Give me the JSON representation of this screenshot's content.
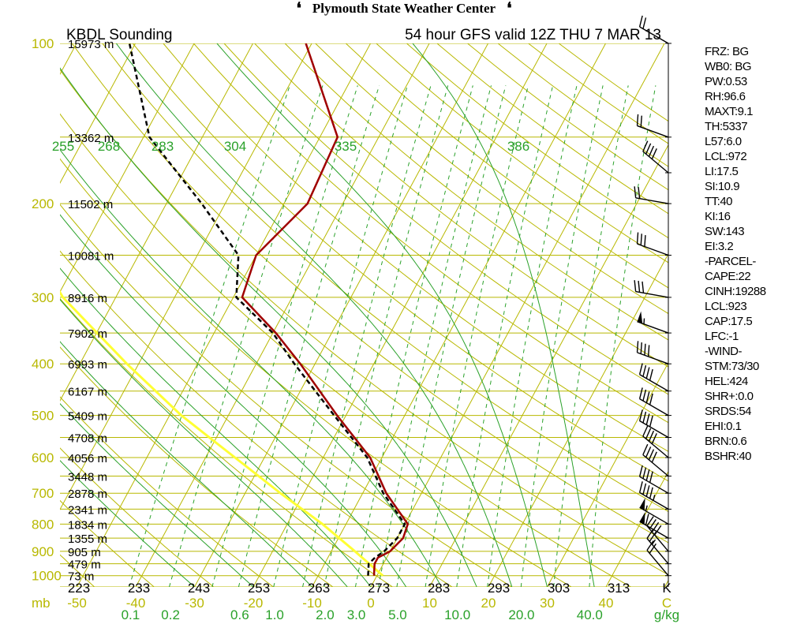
{
  "header": {
    "center_title": "Plymouth State Weather Center",
    "logo_glyph": "❛"
  },
  "chart_data": {
    "type": "skew-t",
    "station_title": "KBDL Sounding",
    "run_title": "54 hour GFS valid 12Z THU 7 MAR 13",
    "pressure_axis_unit": "mb",
    "temperature_axis_unit": "C",
    "mixing_ratio_unit": "g/kg",
    "kelvin_unit": "K",
    "pressure_ticks": [
      100,
      200,
      300,
      400,
      500,
      600,
      700,
      800,
      900,
      1000
    ],
    "temperature_ticks": [
      -50,
      -40,
      -30,
      -20,
      -10,
      0,
      10,
      20,
      30,
      40
    ],
    "kelvin_ticks": [
      223,
      233,
      243,
      253,
      263,
      273,
      283,
      293,
      303,
      313
    ],
    "mixing_ratio_ticks": [
      "0.1",
      "0.2",
      "0.6",
      "1.0",
      "2.0",
      "3.0",
      "5.0",
      "10.0",
      "20.0",
      "40.0"
    ],
    "theta_e_labels": [
      "255",
      "268",
      "283",
      "304",
      "335",
      "386"
    ],
    "height_labels": [
      {
        "p": 100,
        "label": "15973 m"
      },
      {
        "p": 150,
        "label": "13362 m"
      },
      {
        "p": 200,
        "label": "11502 m"
      },
      {
        "p": 250,
        "label": "10081 m"
      },
      {
        "p": 300,
        "label": "8916 m"
      },
      {
        "p": 350,
        "label": "7902 m"
      },
      {
        "p": 400,
        "label": "6993 m"
      },
      {
        "p": 450,
        "label": "6167 m"
      },
      {
        "p": 500,
        "label": "5409 m"
      },
      {
        "p": 550,
        "label": "4708 m"
      },
      {
        "p": 600,
        "label": "4056 m"
      },
      {
        "p": 650,
        "label": "3448 m"
      },
      {
        "p": 700,
        "label": "2878 m"
      },
      {
        "p": 750,
        "label": "2341 m"
      },
      {
        "p": 800,
        "label": "1834 m"
      },
      {
        "p": 850,
        "label": "1355 m"
      },
      {
        "p": 900,
        "label": "905 m"
      },
      {
        "p": 950,
        "label": "479 m"
      },
      {
        "p": 1000,
        "label": "73 m"
      }
    ],
    "temperature_profile": [
      {
        "p": 1000,
        "t": -0.5
      },
      {
        "p": 950,
        "t": -1.5
      },
      {
        "p": 925,
        "t": -1.5
      },
      {
        "p": 900,
        "t": 0.0
      },
      {
        "p": 850,
        "t": 1.0
      },
      {
        "p": 800,
        "t": 0.5
      },
      {
        "p": 700,
        "t": -6.0
      },
      {
        "p": 600,
        "t": -12.0
      },
      {
        "p": 500,
        "t": -21.5
      },
      {
        "p": 400,
        "t": -32.5
      },
      {
        "p": 350,
        "t": -39.5
      },
      {
        "p": 300,
        "t": -48.5
      },
      {
        "p": 250,
        "t": -50.0
      },
      {
        "p": 200,
        "t": -46.0
      },
      {
        "p": 150,
        "t": -47.0
      },
      {
        "p": 100,
        "t": -61.0
      }
    ],
    "dewpoint_profile": [
      {
        "p": 1000,
        "t": -1.5
      },
      {
        "p": 950,
        "t": -2.5
      },
      {
        "p": 925,
        "t": -2.0
      },
      {
        "p": 900,
        "t": -1.0
      },
      {
        "p": 850,
        "t": 0.0
      },
      {
        "p": 800,
        "t": 0.0
      },
      {
        "p": 700,
        "t": -6.5
      },
      {
        "p": 600,
        "t": -12.5
      },
      {
        "p": 500,
        "t": -22.0
      },
      {
        "p": 400,
        "t": -33.5
      },
      {
        "p": 350,
        "t": -40.0
      },
      {
        "p": 300,
        "t": -49.5
      },
      {
        "p": 250,
        "t": -53.0
      },
      {
        "p": 200,
        "t": -64.0
      },
      {
        "p": 150,
        "t": -79.0
      },
      {
        "p": 100,
        "t": -91.0
      }
    ],
    "moist_adiabat_example": [
      {
        "p": 1000,
        "t": 1
      },
      {
        "p": 900,
        "t": -6
      },
      {
        "p": 800,
        "t": -14
      },
      {
        "p": 700,
        "t": -24
      },
      {
        "p": 600,
        "t": -35
      },
      {
        "p": 500,
        "t": -48
      },
      {
        "p": 400,
        "t": -62
      },
      {
        "p": 300,
        "t": -79
      },
      {
        "p": 200,
        "t": -97
      },
      {
        "p": 120,
        "t": -113
      }
    ],
    "wind_barbs": [
      {
        "p": 100,
        "dir": 300,
        "kt": 20
      },
      {
        "p": 150,
        "dir": 290,
        "kt": 20
      },
      {
        "p": 175,
        "dir": 310,
        "kt": 40
      },
      {
        "p": 200,
        "dir": 280,
        "kt": 20
      },
      {
        "p": 250,
        "dir": 290,
        "kt": 30
      },
      {
        "p": 300,
        "dir": 280,
        "kt": 30
      },
      {
        "p": 350,
        "dir": 290,
        "kt": 55
      },
      {
        "p": 400,
        "dir": 290,
        "kt": 40
      },
      {
        "p": 450,
        "dir": 300,
        "kt": 40
      },
      {
        "p": 500,
        "dir": 300,
        "kt": 40
      },
      {
        "p": 550,
        "dir": 300,
        "kt": 40
      },
      {
        "p": 600,
        "dir": 310,
        "kt": 40
      },
      {
        "p": 650,
        "dir": 310,
        "kt": 40
      },
      {
        "p": 700,
        "dir": 300,
        "kt": 40
      },
      {
        "p": 750,
        "dir": 300,
        "kt": 45
      },
      {
        "p": 800,
        "dir": 300,
        "kt": 55
      },
      {
        "p": 850,
        "dir": 300,
        "kt": 60
      },
      {
        "p": 900,
        "dir": 320,
        "kt": 40
      },
      {
        "p": 950,
        "dir": 320,
        "kt": 25
      },
      {
        "p": 1000,
        "dir": 320,
        "kt": 20
      }
    ],
    "colors": {
      "isobar": "#b8b800",
      "isotherm": "#b8b800",
      "dry_adiabat": "#b8b800",
      "theta_e": "#2aa12a",
      "mixing_ratio": "#2aa12a",
      "temperature": "#a00000",
      "dewpoint": "#000000",
      "parcel": "#ffff33",
      "axis": "#000000"
    }
  },
  "indices": [
    "FRZ: BG",
    "WB0: BG",
    "PW:0.53",
    "RH:96.6",
    "MAXT:9.1",
    "TH:5337",
    "L57:6.0",
    "LCL:972",
    "LI:17.5",
    "SI:10.9",
    "TT:40",
    "KI:16",
    "SW:143",
    "EI:3.2",
    "-PARCEL-",
    "CAPE:22",
    "CINH:19288",
    "LCL:923",
    "CAP:17.5",
    "LFC:-1",
    "-WIND-",
    "STM:73/30",
    "HEL:424",
    "SHR+:0.0",
    "SRDS:54",
    "EHI:0.1",
    "BRN:0.6",
    "BSHR:40"
  ]
}
